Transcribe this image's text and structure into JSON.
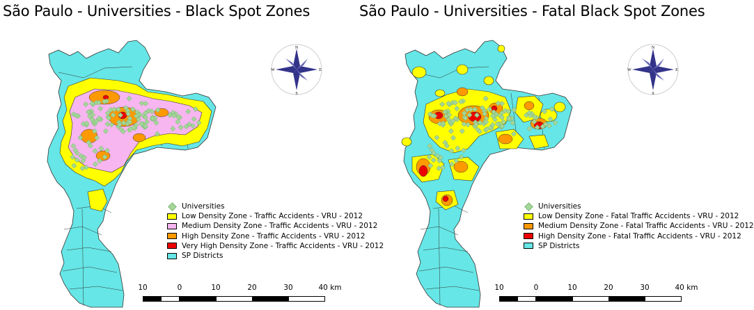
{
  "colors": {
    "districts": "#66e6e6",
    "low": "#ffff00",
    "medium": "#f7b6f0",
    "high": "#ff9900",
    "very_high": "#ee0000",
    "universities": "#a4d79a",
    "compass": "#33338a"
  },
  "left": {
    "title": "São Paulo - Universities - Black Spot Zones",
    "legend": [
      {
        "label": "Universities",
        "symbol": "diamond"
      },
      {
        "label": "Low Density Zone - Traffic Accidents - VRU - 2012",
        "color": "#ffff00"
      },
      {
        "label": "Medium Density Zone - Traffic Accidents - VRU - 2012",
        "color": "#f7b6f0"
      },
      {
        "label": "High Density Zone - Traffic Accidents - VRU - 2012",
        "color": "#ff9900"
      },
      {
        "label": "Very High Density Zone - Traffic Accidents - VRU - 2012",
        "color": "#ee0000"
      },
      {
        "label": "SP Districts",
        "color": "#66e6e6"
      }
    ],
    "compass": {
      "n": "N",
      "s": "S",
      "e": "E",
      "w": "W"
    },
    "scale": {
      "ticks": [
        "10",
        "0",
        "10",
        "20",
        "30",
        "40 km"
      ]
    }
  },
  "right": {
    "title": "São Paulo - Universities - Fatal Black Spot Zones",
    "legend": [
      {
        "label": "Universities",
        "symbol": "diamond"
      },
      {
        "label": "Low Density Zone - Fatal Traffic Accidents - VRU - 2012",
        "color": "#ffff00"
      },
      {
        "label": "Medium Density Zone - Fatal Traffic Accidents - VRU - 2012",
        "color": "#ff9900"
      },
      {
        "label": "High Density Zone - Fatal Traffic Accidents - VRU - 2012",
        "color": "#ee0000"
      },
      {
        "label": "SP Districts",
        "color": "#66e6e6"
      }
    ],
    "compass": {
      "n": "N",
      "s": "S",
      "e": "E",
      "w": "W"
    },
    "scale": {
      "ticks": [
        "10",
        "0",
        "10",
        "20",
        "30",
        "40 km"
      ]
    }
  }
}
